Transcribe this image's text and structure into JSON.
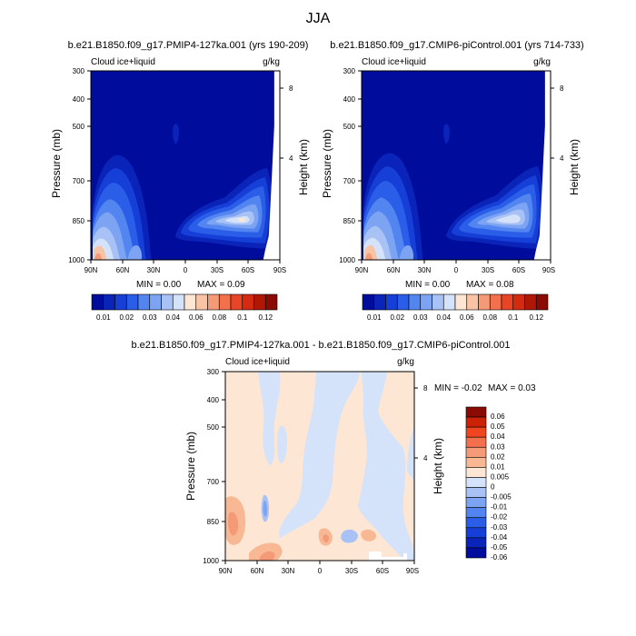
{
  "title": "JJA",
  "colors": {
    "background": "#ffffff",
    "axis": "#000000",
    "field_fill_top": "#000c9c"
  },
  "chart_data": [
    {
      "type": "heatmap",
      "id": "top-left",
      "title": "b.e21.B1850.f09_g17.PMIP4-127ka.001 (yrs 190-209)",
      "variable": "Cloud ice+liquid",
      "units": "g/kg",
      "ylabel": "Pressure (mb)",
      "ylabel_right": "Height (km)",
      "x_ticks": [
        "90N",
        "60N",
        "30N",
        "0",
        "30S",
        "60S",
        "90S"
      ],
      "y_ticks": [
        "300",
        "400",
        "500",
        "700",
        "850",
        "1000"
      ],
      "y_ticks_right": [
        "8",
        "4"
      ],
      "min_label": "MIN =   0.00",
      "max_label": "MAX =   0.09",
      "min": 0.0,
      "max": 0.09
    },
    {
      "type": "heatmap",
      "id": "top-right",
      "title": "b.e21.B1850.f09_g17.CMIP6-piControl.001 (yrs 714-733)",
      "variable": "Cloud ice+liquid",
      "units": "g/kg",
      "ylabel": "Pressure (mb)",
      "ylabel_right": "Height (km)",
      "x_ticks": [
        "90N",
        "60N",
        "30N",
        "0",
        "30S",
        "60S",
        "90S"
      ],
      "y_ticks": [
        "300",
        "400",
        "500",
        "700",
        "850",
        "1000"
      ],
      "y_ticks_right": [
        "8",
        "4"
      ],
      "min_label": "MIN =   0.00",
      "max_label": "MAX =   0.08",
      "min": 0.0,
      "max": 0.08
    },
    {
      "type": "heatmap",
      "id": "bottom-diff",
      "title": "b.e21.B1850.f09_g17.PMIP4-127ka.001 - b.e21.B1850.f09_g17.CMIP6-piControl.001",
      "variable": "Cloud ice+liquid",
      "units": "g/kg",
      "ylabel": "Pressure (mb)",
      "ylabel_right": "Height (km)",
      "x_ticks": [
        "90N",
        "60N",
        "30N",
        "0",
        "30S",
        "60S",
        "90S"
      ],
      "y_ticks": [
        "300",
        "400",
        "500",
        "700",
        "850",
        "1000"
      ],
      "y_ticks_right": [
        "8",
        "4"
      ],
      "min_label": "MIN =  -0.02",
      "max_label": "MAX =   0.03",
      "min": -0.02,
      "max": 0.03
    }
  ],
  "colorbars": {
    "top": {
      "labels": [
        "0.01",
        "0.02",
        "0.03",
        "0.04",
        "0.06",
        "0.08",
        "0.1",
        "0.12"
      ],
      "colors": [
        "#000c9c",
        "#0a24ba",
        "#153fd6",
        "#2a5ee8",
        "#5285ef",
        "#7da4f2",
        "#a8c2f5",
        "#d4e3fa",
        "#fde6d4",
        "#f9c3a6",
        "#f59a76",
        "#f2704c",
        "#e84527",
        "#d42a10",
        "#b01806",
        "#8a0b04"
      ]
    },
    "diff": {
      "labels": [
        "0.06",
        "0.05",
        "0.04",
        "0.03",
        "0.02",
        "0.01",
        "0.005",
        "0",
        "-0.005",
        "-0.01",
        "-0.02",
        "-0.03",
        "-0.04",
        "-0.05",
        "-0.06"
      ],
      "colors": [
        "#8a0b04",
        "#cc2208",
        "#ef4520",
        "#f2704c",
        "#f59a76",
        "#f8b894",
        "#fde6d4",
        "#d4e3fa",
        "#a8c2f5",
        "#7da4f2",
        "#5285ef",
        "#2a5ee8",
        "#153fd6",
        "#0a24ba",
        "#000c9c"
      ]
    }
  }
}
